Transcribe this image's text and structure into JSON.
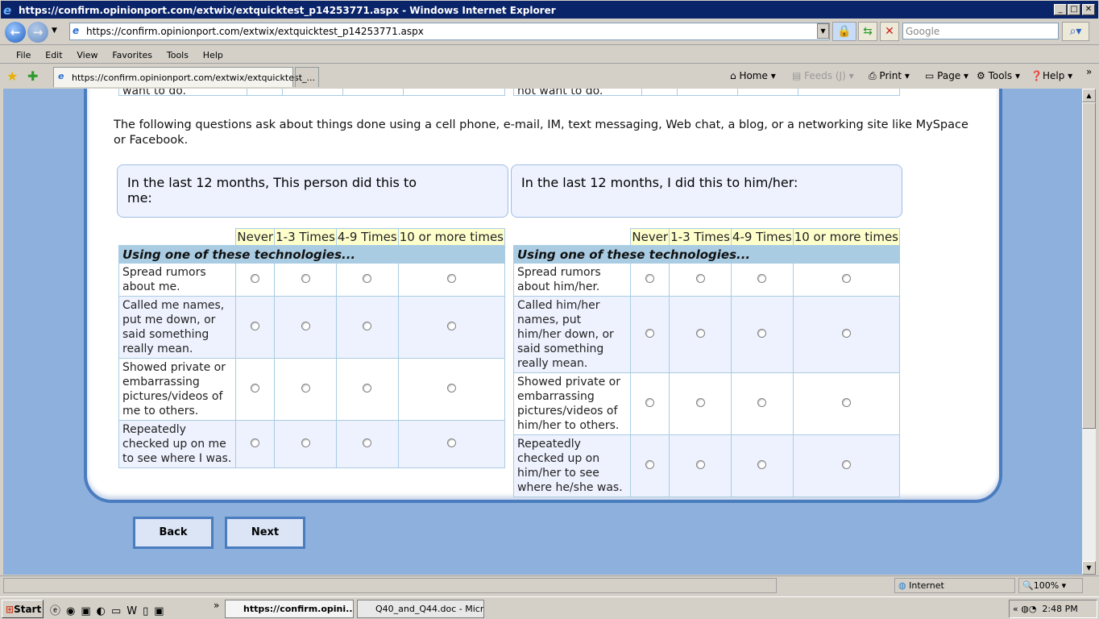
{
  "window": {
    "title": "https://confirm.opinionport.com/extwix/extquicktest_p14253771.aspx - Windows Internet Explorer"
  },
  "address_bar": {
    "url": "https://confirm.opinionport.com/extwix/extquicktest_p14253771.aspx",
    "search_placeholder": "Google"
  },
  "menu": [
    "File",
    "Edit",
    "View",
    "Favorites",
    "Tools",
    "Help"
  ],
  "tab": {
    "label": "https://confirm.opinionport.com/extwix/extquicktest_..."
  },
  "command_bar": {
    "home": "Home",
    "feeds": "Feeds (J)",
    "print": "Print",
    "page": "Page",
    "tools": "Tools",
    "help": "Help"
  },
  "page": {
    "prev_row_left": "want to do.",
    "prev_row_right": "not want to do.",
    "intro": "The following questions ask about things done using a cell phone, e-mail, IM, text messaging, Web chat, a blog, or a networking site like MySpace or Facebook.",
    "options": [
      "Never",
      "1-3 Times",
      "4-9 Times",
      "10 or more times"
    ],
    "section": "Using one of these technologies...",
    "left": {
      "question": "In the last 12 months, This person did this to me:",
      "items": [
        "Spread rumors about me.",
        "Called me names, put me down, or said something really mean.",
        "Showed private or embarrassing pictures/videos of me to others.",
        "Repeatedly checked up on me to see where I was."
      ]
    },
    "right": {
      "question": "In the last 12 months, I did this to him/her:",
      "items": [
        "Spread rumors about him/her.",
        "Called him/her names, put him/her down, or said something really mean.",
        "Showed private or embarrassing pictures/videos of him/her to others.",
        "Repeatedly checked up on him/her to see where he/she was."
      ]
    },
    "back": "Back",
    "next": "Next"
  },
  "status": {
    "zone": "Internet",
    "zoom": "100%"
  },
  "taskbar": {
    "start": "Start",
    "tasks": [
      "https://confirm.opini...",
      "Q40_and_Q44.doc - Micr..."
    ],
    "time": "2:48 PM"
  },
  "colors": {
    "titlebar": "#0a246a",
    "page_bg": "#8db0dc",
    "panel_border": "#4a7cc0",
    "option_header": "#ffffcc",
    "section_header": "#a9cce3",
    "alt_row": "#eef2fe"
  }
}
